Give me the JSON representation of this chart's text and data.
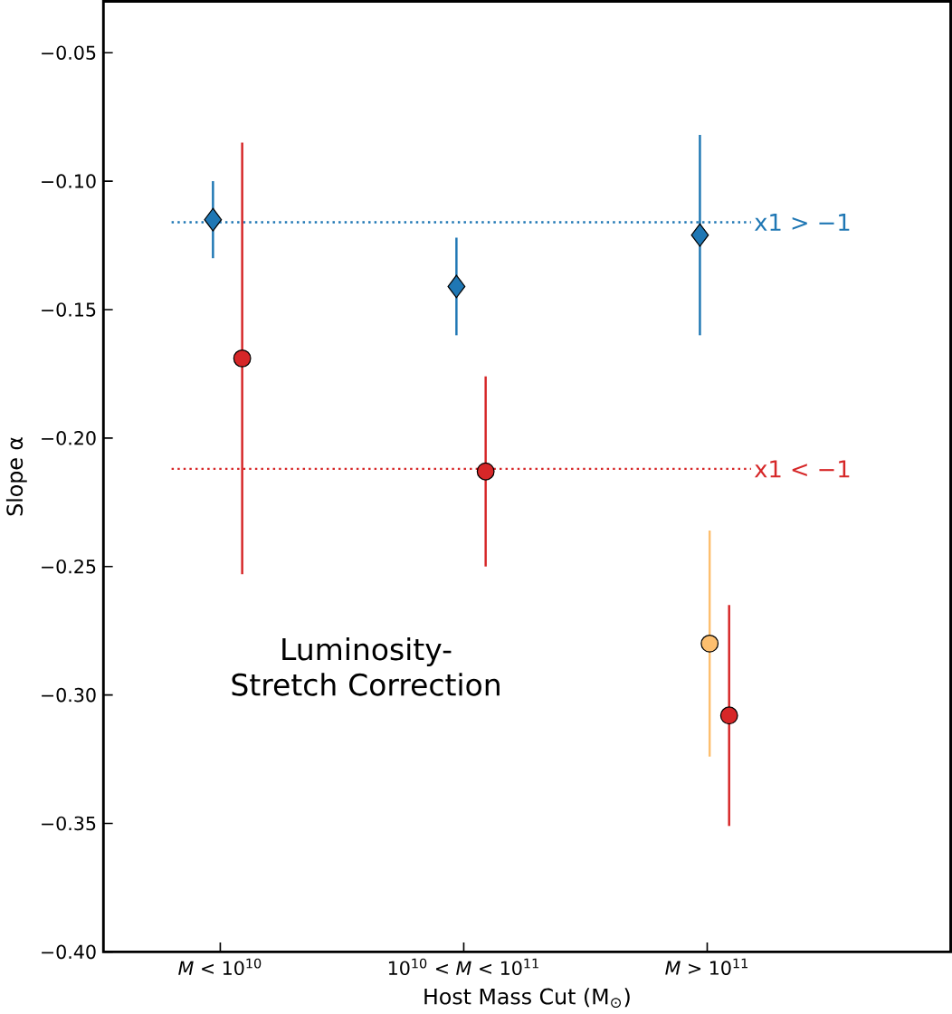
{
  "chart_data": {
    "type": "scatter",
    "categories": [
      "*M* < 10$^{10}$",
      "10$^{10}$ < *M* < 10$^{11}$",
      "*M* > 10$^{11}$"
    ],
    "xlabel": "Host Mass Cut (M$_{⊙}$)",
    "ylabel": "Slope α",
    "ylim": [
      -0.4,
      -0.03
    ],
    "yticks": [
      {
        "value": -0.05,
        "label": "−0.05"
      },
      {
        "value": -0.1,
        "label": "−0.10"
      },
      {
        "value": -0.15,
        "label": "−0.15"
      },
      {
        "value": -0.2,
        "label": "−0.20"
      },
      {
        "value": -0.25,
        "label": "−0.25"
      },
      {
        "value": -0.3,
        "label": "−0.30"
      },
      {
        "value": -0.35,
        "label": "−0.35"
      },
      {
        "value": -0.4,
        "label": "−0.40"
      }
    ],
    "series": [
      {
        "color": "#1f77b4",
        "marker": "diamond",
        "values": [
          -0.115,
          -0.141,
          -0.121
        ],
        "errors": [
          0.015,
          0.019,
          0.039
        ]
      },
      {
        "color": "#d62728",
        "marker": "circle",
        "values": [
          -0.169,
          -0.213,
          -0.308
        ],
        "errors": [
          0.084,
          0.037,
          0.043
        ]
      },
      {
        "color": "#fdbf6f",
        "marker": "circle",
        "values": [
          null,
          null,
          -0.28
        ],
        "errors": [
          null,
          null,
          0.044
        ]
      }
    ],
    "ref_lines": [
      {
        "axis": "y",
        "value": -0.116,
        "label": "x1 > −1",
        "color": "#1f77b4",
        "line_style": "dotted"
      },
      {
        "axis": "y",
        "value": -0.212,
        "label": "x1 < −1",
        "color": "#d62728",
        "line_style": "dotted"
      }
    ],
    "annotations": [
      "Luminosity-Stretch Correction"
    ],
    "grid": false
  }
}
